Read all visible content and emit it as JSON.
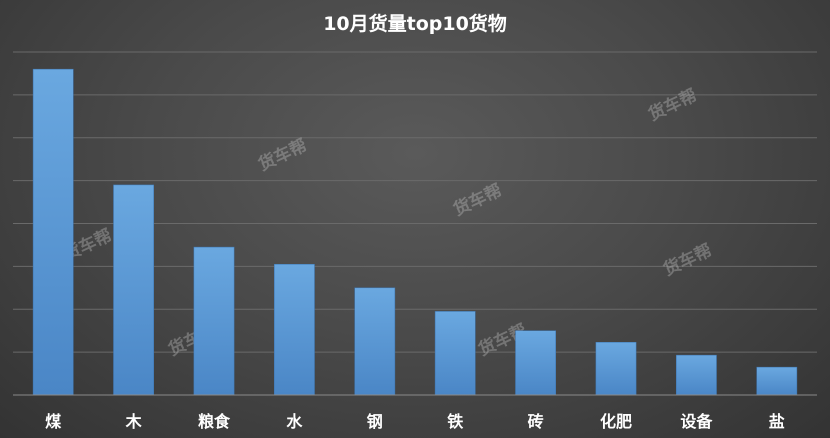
{
  "chart_data": {
    "type": "bar",
    "title": "10月货量top10货物",
    "categories": [
      "煤",
      "木",
      "粮食",
      "水",
      "钢",
      "铁",
      "砖",
      "化肥",
      "设备",
      "盐"
    ],
    "values": [
      76,
      49,
      34.5,
      30.5,
      25,
      19.5,
      15,
      12.3,
      9.3,
      6.5
    ],
    "ylim": [
      0,
      80
    ],
    "grid": true,
    "bar_color": "#5b9bd5",
    "background_color": "#404040"
  },
  "watermark": {
    "text": "货车帮"
  }
}
